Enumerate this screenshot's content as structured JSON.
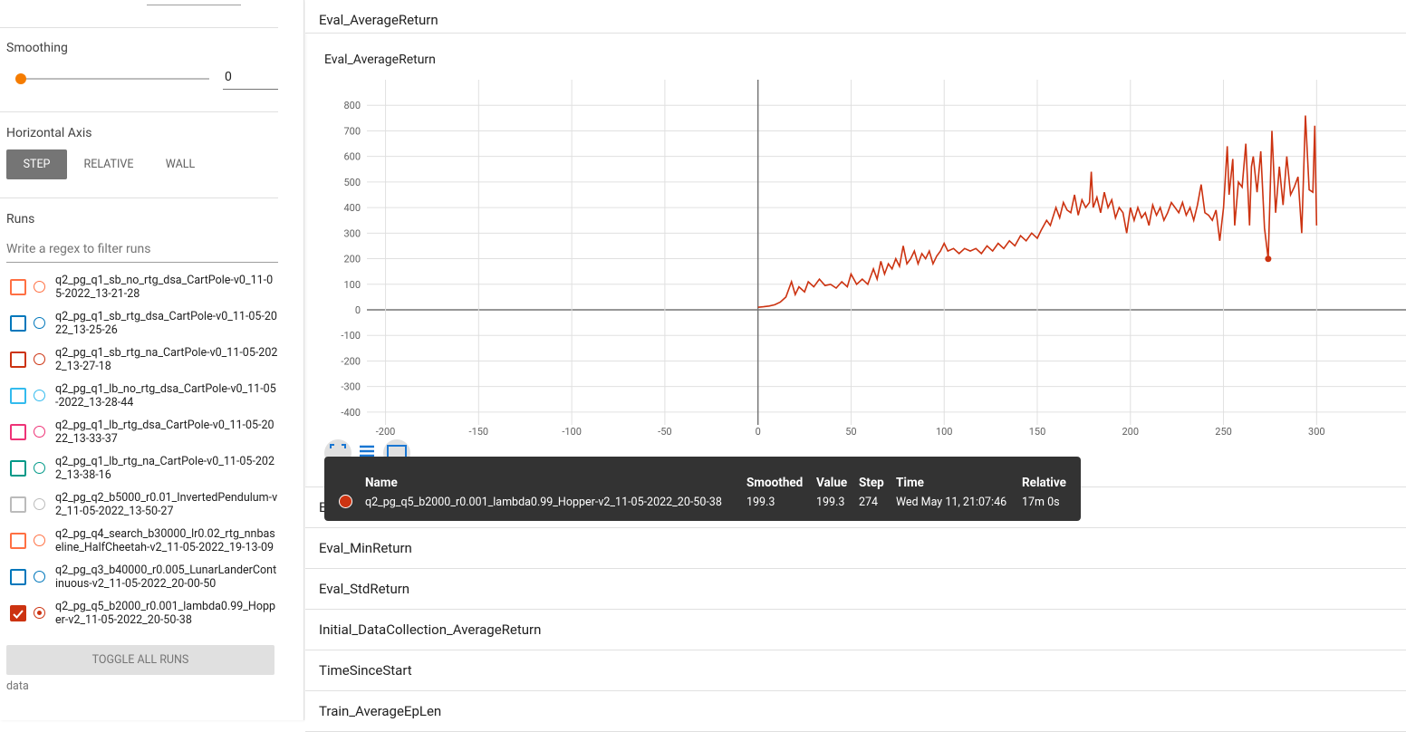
{
  "sidebar": {
    "smoothing": {
      "label": "Smoothing",
      "value": "0"
    },
    "horizontal_axis": {
      "label": "Horizontal Axis",
      "options": [
        "STEP",
        "RELATIVE",
        "WALL"
      ],
      "selected": "STEP"
    },
    "runs": {
      "label": "Runs",
      "filter_placeholder": "Write a regex to filter runs",
      "items": [
        {
          "name": "q2_pg_q1_sb_no_rtg_dsa_CartPole-v0_11-05-2022_13-21-28",
          "color": "#ff7043",
          "checked": false
        },
        {
          "name": "q2_pg_q1_sb_rtg_dsa_CartPole-v0_11-05-2022_13-25-26",
          "color": "#0077bb",
          "checked": false
        },
        {
          "name": "q2_pg_q1_sb_rtg_na_CartPole-v0_11-05-2022_13-27-18",
          "color": "#cc3311",
          "checked": false
        },
        {
          "name": "q2_pg_q1_lb_no_rtg_dsa_CartPole-v0_11-05-2022_13-28-44",
          "color": "#33bbee",
          "checked": false
        },
        {
          "name": "q2_pg_q1_lb_rtg_dsa_CartPole-v0_11-05-2022_13-33-37",
          "color": "#ee3377",
          "checked": false
        },
        {
          "name": "q2_pg_q1_lb_rtg_na_CartPole-v0_11-05-2022_13-38-16",
          "color": "#009988",
          "checked": false
        },
        {
          "name": "q2_pg_q2_b5000_r0.01_InvertedPendulum-v2_11-05-2022_13-50-27",
          "color": "#bbbbbb",
          "checked": false
        },
        {
          "name": "q2_pg_q4_search_b30000_lr0.02_rtg_nnbaseline_HalfCheetah-v2_11-05-2022_19-13-09",
          "color": "#ff7043",
          "checked": false
        },
        {
          "name": "q2_pg_q3_b40000_r0.005_LunarLanderContinuous-v2_11-05-2022_20-00-50",
          "color": "#0077bb",
          "checked": false
        },
        {
          "name": "q2_pg_q5_b2000_r0.001_lambda0.99_Hopper-v2_11-05-2022_20-50-38",
          "color": "#cc3311",
          "checked": true
        }
      ],
      "toggle": "TOGGLE ALL RUNS",
      "footer": "data"
    }
  },
  "sections": [
    "Eval_AverageReturn",
    "Eval_MaxReturn",
    "Eval_MinReturn",
    "Eval_StdReturn",
    "Initial_DataCollection_AverageReturn",
    "TimeSinceStart",
    "Train_AverageEpLen"
  ],
  "chart_data": {
    "type": "line",
    "title": "Eval_AverageReturn",
    "color": "#cc3311",
    "x": [
      0,
      3,
      6,
      9,
      12,
      15,
      18,
      20,
      22,
      25,
      27,
      30,
      33,
      36,
      39,
      42,
      45,
      48,
      50,
      53,
      56,
      59,
      62,
      64,
      66,
      68,
      70,
      72,
      74,
      76,
      78,
      80,
      82,
      84,
      86,
      88,
      90,
      92,
      94,
      96,
      98,
      100,
      102,
      105,
      108,
      111,
      114,
      117,
      120,
      123,
      126,
      129,
      132,
      135,
      138,
      141,
      144,
      147,
      150,
      152,
      155,
      157,
      160,
      162,
      164,
      166,
      168,
      170,
      172,
      174,
      176,
      178,
      179,
      180,
      182,
      184,
      186,
      188,
      190,
      192,
      194,
      196,
      198,
      200,
      202,
      204,
      206,
      208,
      210,
      212,
      214,
      216,
      218,
      220,
      222,
      224,
      226,
      228,
      230,
      232,
      234,
      236,
      238,
      240,
      242,
      244,
      246,
      248,
      250,
      252,
      253,
      255,
      256,
      258,
      260,
      262,
      264,
      265,
      266,
      268,
      270,
      272,
      274,
      276,
      278,
      280,
      282,
      284,
      286,
      288,
      290,
      292,
      294,
      296,
      298,
      299,
      300
    ],
    "values": [
      10,
      12,
      15,
      20,
      30,
      50,
      110,
      60,
      90,
      70,
      110,
      90,
      120,
      95,
      100,
      85,
      110,
      90,
      140,
      100,
      120,
      100,
      160,
      120,
      190,
      140,
      180,
      160,
      200,
      170,
      250,
      180,
      200,
      230,
      180,
      220,
      200,
      230,
      180,
      210,
      230,
      260,
      230,
      240,
      220,
      240,
      230,
      240,
      220,
      250,
      230,
      260,
      240,
      270,
      250,
      290,
      270,
      300,
      280,
      310,
      350,
      330,
      400,
      360,
      420,
      390,
      380,
      450,
      370,
      430,
      400,
      420,
      540,
      400,
      440,
      380,
      460,
      400,
      430,
      360,
      400,
      380,
      300,
      400,
      350,
      400,
      360,
      380,
      330,
      410,
      370,
      400,
      350,
      380,
      420,
      400,
      380,
      420,
      370,
      400,
      350,
      410,
      490,
      380,
      370,
      350,
      390,
      270,
      400,
      640,
      450,
      590,
      330,
      500,
      480,
      650,
      330,
      560,
      600,
      460,
      620,
      320,
      199.3,
      700,
      380,
      560,
      410,
      600,
      450,
      480,
      520,
      300,
      760,
      470,
      460,
      720,
      330
    ],
    "xlim": [
      -210,
      348
    ],
    "ylim": [
      -450,
      900
    ],
    "xticks": [
      -200,
      -150,
      -100,
      -50,
      0,
      50,
      100,
      150,
      200,
      250,
      300
    ],
    "yticks": [
      -400,
      -300,
      -200,
      -100,
      0,
      100,
      200,
      300,
      400,
      500,
      600,
      700,
      800
    ],
    "grid": true
  },
  "tooltip": {
    "headers": [
      "Name",
      "Smoothed",
      "Value",
      "Step",
      "Time",
      "Relative"
    ],
    "name": "q2_pg_q5_b2000_r0.001_lambda0.99_Hopper-v2_11-05-2022_20-50-38",
    "smoothed": 199.3,
    "value": 199.3,
    "step": 274,
    "time": "Wed May 11, 21:07:46",
    "relative": "17m 0s"
  }
}
